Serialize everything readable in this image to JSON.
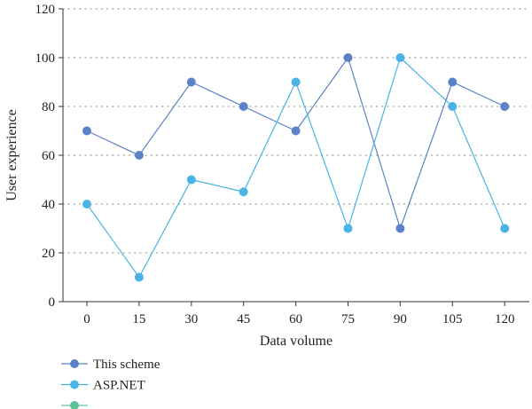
{
  "chart_data": {
    "type": "line",
    "title": "",
    "xlabel": "Data volume",
    "ylabel": "User experience",
    "x": [
      0,
      15,
      30,
      45,
      60,
      75,
      90,
      105,
      120
    ],
    "x_tick_labels": [
      "0",
      "15",
      "30",
      "45",
      "60",
      "75",
      "90",
      "105",
      "120"
    ],
    "y_ticks": [
      0,
      20,
      40,
      60,
      80,
      100,
      120
    ],
    "y_tick_labels": [
      "0",
      "20",
      "40",
      "60",
      "80",
      "100",
      "120"
    ],
    "ylim": [
      0,
      120
    ],
    "grid": "horizontal-dotted",
    "legend_position": "bottom-left",
    "series": [
      {
        "name": "This scheme",
        "color": "#5b82c6",
        "values": [
          70,
          60,
          90,
          80,
          70,
          100,
          30,
          90,
          80
        ]
      },
      {
        "name": "ASP.NET",
        "color": "#4ab4e6",
        "values": [
          40,
          10,
          50,
          45,
          90,
          30,
          100,
          80,
          30
        ]
      }
    ],
    "legend": [
      {
        "label": "This scheme",
        "color": "#5b82c6"
      },
      {
        "label": "ASP.NET",
        "color": "#4ab4e6"
      },
      {
        "label": "",
        "color": "#5dc394"
      }
    ]
  }
}
